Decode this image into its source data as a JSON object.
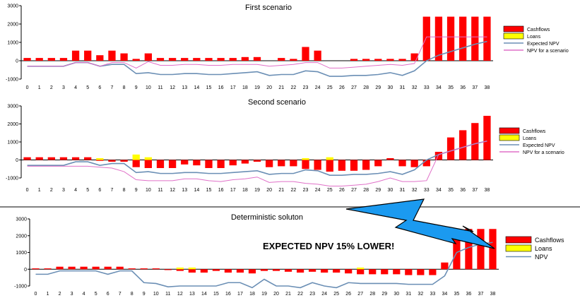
{
  "colors": {
    "cashflow": "#ff0000",
    "loan": "#ffff00",
    "expected_npv": "#6b8fb5",
    "scenario_npv": "#e070c8",
    "arrow": "#1b9af0",
    "separator": "#808080"
  },
  "callout": "EXPECTED NPV 15% LOWER!",
  "chart_data": [
    {
      "type": "bar",
      "title": "First scenario",
      "x": [
        0,
        1,
        2,
        3,
        4,
        5,
        6,
        7,
        8,
        9,
        10,
        11,
        12,
        13,
        14,
        15,
        16,
        17,
        18,
        19,
        20,
        21,
        22,
        23,
        24,
        25,
        26,
        27,
        28,
        29,
        30,
        31,
        32,
        33,
        34,
        35,
        36,
        37,
        38
      ],
      "yticks": [
        -1000,
        0,
        1000,
        2000,
        3000
      ],
      "ylim": [
        -1000,
        3000
      ],
      "legend": [
        "Cashflows",
        "Loans",
        "Expected NPV",
        "NPV for a scenario"
      ],
      "legend_position": "right",
      "series": [
        {
          "name": "Cashflows",
          "values": [
            150,
            150,
            150,
            150,
            550,
            550,
            300,
            550,
            400,
            100,
            400,
            150,
            150,
            150,
            150,
            150,
            150,
            150,
            200,
            200,
            0,
            150,
            100,
            750,
            550,
            0,
            0,
            100,
            100,
            100,
            100,
            100,
            400,
            2400,
            2400,
            2400,
            2400,
            2400,
            2400
          ]
        },
        {
          "name": "Loans",
          "values": [
            0,
            0,
            0,
            0,
            0,
            0,
            0,
            0,
            0,
            0,
            0,
            0,
            0,
            0,
            0,
            0,
            0,
            0,
            0,
            0,
            0,
            0,
            0,
            0,
            0,
            0,
            0,
            0,
            0,
            0,
            0,
            0,
            0,
            0,
            0,
            0,
            0,
            0,
            0
          ]
        },
        {
          "name": "Expected NPV",
          "values": [
            -300,
            -300,
            -300,
            -300,
            -100,
            -100,
            -300,
            -200,
            -200,
            -700,
            -650,
            -750,
            -750,
            -700,
            -700,
            -750,
            -750,
            -700,
            -650,
            -600,
            -800,
            -750,
            -750,
            -550,
            -600,
            -850,
            -850,
            -800,
            -800,
            -750,
            -650,
            -800,
            -550,
            0,
            300,
            500,
            700,
            900,
            1050
          ]
        },
        {
          "name": "NPV for a scenario",
          "values": [
            -300,
            -300,
            -300,
            -300,
            -100,
            -100,
            -300,
            -100,
            -100,
            -400,
            -50,
            -250,
            -250,
            -200,
            -200,
            -250,
            -250,
            -200,
            -200,
            -200,
            -300,
            -250,
            -200,
            -100,
            -100,
            -400,
            -400,
            -350,
            -300,
            -250,
            -200,
            -250,
            -150,
            1300,
            1300,
            1300,
            1300,
            1300,
            1300
          ]
        }
      ]
    },
    {
      "type": "bar",
      "title": "Second scenario",
      "x": [
        0,
        1,
        2,
        3,
        4,
        5,
        6,
        7,
        8,
        9,
        10,
        11,
        12,
        13,
        14,
        15,
        16,
        17,
        18,
        19,
        20,
        21,
        22,
        23,
        24,
        25,
        26,
        27,
        28,
        29,
        30,
        31,
        32,
        33,
        34,
        35,
        36,
        37,
        38
      ],
      "yticks": [
        -1000,
        0,
        1000,
        2000,
        3000
      ],
      "ylim": [
        -1000,
        3000
      ],
      "legend": [
        "Cashflows",
        "Loans",
        "Expected NPV",
        "NPV for a scenario"
      ],
      "legend_position": "right",
      "series": [
        {
          "name": "Cashflows",
          "values": [
            150,
            150,
            150,
            150,
            150,
            150,
            -50,
            -100,
            -100,
            -400,
            -450,
            -450,
            -450,
            -250,
            -300,
            -450,
            -450,
            -300,
            -200,
            -100,
            -400,
            -350,
            -350,
            -500,
            -550,
            -650,
            -600,
            -600,
            -550,
            -350,
            100,
            -350,
            -400,
            -350,
            450,
            1250,
            1650,
            2050,
            2450
          ]
        },
        {
          "name": "Loans",
          "values": [
            0,
            0,
            0,
            0,
            0,
            0,
            100,
            0,
            0,
            300,
            150,
            0,
            0,
            0,
            0,
            0,
            0,
            0,
            0,
            0,
            0,
            0,
            0,
            100,
            0,
            150,
            0,
            0,
            0,
            0,
            0,
            0,
            0,
            0,
            0,
            0,
            0,
            0,
            0
          ]
        },
        {
          "name": "Expected NPV",
          "values": [
            -300,
            -300,
            -300,
            -300,
            -100,
            -100,
            -300,
            -200,
            -200,
            -700,
            -650,
            -750,
            -750,
            -700,
            -700,
            -750,
            -750,
            -700,
            -650,
            -600,
            -800,
            -750,
            -750,
            -550,
            -600,
            -850,
            -850,
            -800,
            -800,
            -750,
            -650,
            -800,
            -550,
            0,
            300,
            500,
            700,
            900,
            1050
          ]
        },
        {
          "name": "NPV for a scenario",
          "values": [
            -350,
            -350,
            -350,
            -350,
            -350,
            -350,
            -400,
            -450,
            -650,
            -1100,
            -1150,
            -1150,
            -1150,
            -1050,
            -1050,
            -1150,
            -1200,
            -1100,
            -1050,
            -950,
            -1250,
            -1200,
            -1200,
            -1300,
            -1350,
            -1450,
            -1450,
            -1400,
            -1350,
            -1200,
            -1000,
            -1200,
            -1200,
            -1150,
            300,
            500,
            700,
            900,
            1050
          ]
        }
      ]
    },
    {
      "type": "bar",
      "title": "Deterministic  soluton",
      "x": [
        0,
        1,
        2,
        3,
        4,
        5,
        6,
        7,
        8,
        9,
        10,
        11,
        12,
        13,
        14,
        15,
        16,
        17,
        18,
        19,
        20,
        21,
        22,
        23,
        24,
        25,
        26,
        27,
        28,
        29,
        30,
        31,
        32,
        33,
        34,
        35,
        36,
        37,
        38
      ],
      "yticks": [
        -1000,
        0,
        1000,
        2000,
        3000
      ],
      "ylim": [
        -1000,
        3000
      ],
      "legend": [
        "Cashflows",
        "Loans",
        "NPV"
      ],
      "legend_position": "right",
      "series": [
        {
          "name": "Cashflows",
          "values": [
            50,
            50,
            150,
            150,
            150,
            150,
            150,
            150,
            50,
            50,
            50,
            -50,
            -100,
            -200,
            -200,
            -100,
            -200,
            -200,
            -250,
            -100,
            -100,
            -150,
            -200,
            -150,
            -200,
            -200,
            -250,
            -300,
            -300,
            -300,
            -300,
            -350,
            -350,
            -350,
            400,
            2000,
            2400,
            2400,
            2400
          ]
        },
        {
          "name": "Loans",
          "values": [
            0,
            0,
            0,
            0,
            0,
            0,
            0,
            0,
            0,
            0,
            0,
            0,
            100,
            100,
            0,
            0,
            0,
            0,
            0,
            0,
            0,
            0,
            0,
            0,
            0,
            0,
            0,
            100,
            0,
            0,
            0,
            0,
            0,
            0,
            0,
            0,
            0,
            0,
            0
          ]
        },
        {
          "name": "NPV",
          "values": [
            -300,
            -300,
            -100,
            -100,
            -100,
            -100,
            -300,
            -100,
            -100,
            -800,
            -850,
            -1050,
            -1000,
            -1000,
            -1000,
            -1000,
            -800,
            -800,
            -1100,
            -600,
            -1000,
            -1000,
            -1100,
            -800,
            -1000,
            -1100,
            -800,
            -850,
            -850,
            -850,
            -850,
            -900,
            -900,
            -900,
            -400,
            1000,
            1300,
            1500,
            1600
          ]
        }
      ]
    }
  ]
}
